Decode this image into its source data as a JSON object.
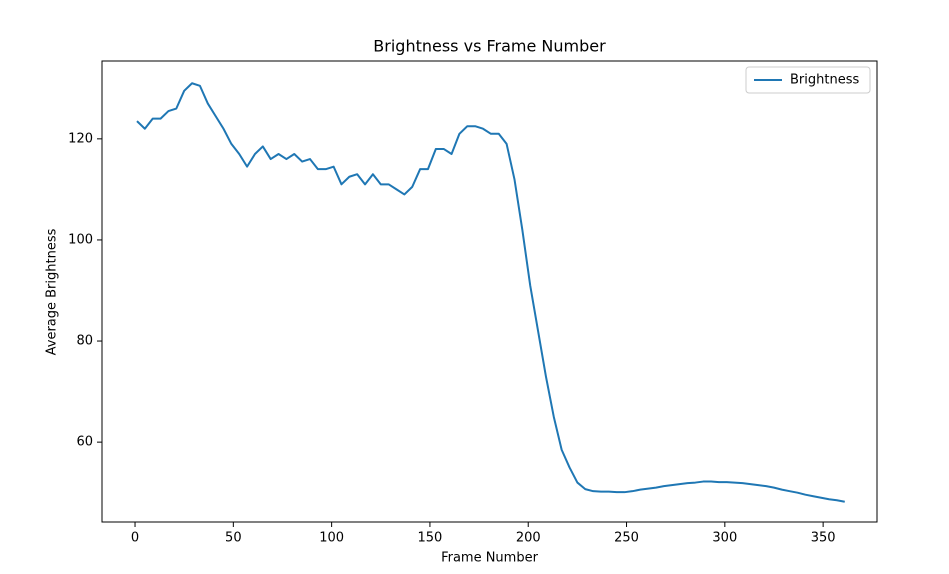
{
  "chart_data": {
    "type": "line",
    "title": "Brightness vs Frame Number",
    "x_label": "Frame Number",
    "y_label": "Average Brightness",
    "x": [
      1,
      5,
      9,
      13,
      17,
      21,
      25,
      29,
      33,
      37,
      41,
      45,
      49,
      53,
      57,
      61,
      65,
      69,
      73,
      77,
      81,
      85,
      89,
      93,
      97,
      101,
      105,
      109,
      113,
      117,
      121,
      125,
      129,
      133,
      137,
      141,
      145,
      149,
      153,
      157,
      161,
      165,
      169,
      173,
      177,
      181,
      185,
      189,
      193,
      197,
      201,
      205,
      209,
      213,
      217,
      221,
      225,
      229,
      233,
      237,
      241,
      245,
      249,
      253,
      257,
      261,
      265,
      269,
      273,
      277,
      281,
      285,
      289,
      293,
      297,
      301,
      305,
      309,
      313,
      317,
      321,
      325,
      329,
      333,
      337,
      341,
      345,
      349,
      353,
      357,
      361
    ],
    "series": [
      {
        "name": "Brightness",
        "color": "#1f77b4",
        "values": [
          123.5,
          122,
          124,
          124,
          125.5,
          126,
          129.5,
          131,
          130.5,
          127,
          124.5,
          122,
          119,
          117,
          114.5,
          117,
          118.5,
          116,
          117,
          116,
          117,
          115.5,
          116,
          114,
          114,
          114.5,
          111,
          112.5,
          113,
          111,
          113,
          111,
          111,
          110,
          109,
          110.5,
          114,
          114,
          118,
          118,
          117,
          121,
          122.5,
          122.5,
          122,
          121,
          121,
          119,
          112,
          102,
          91,
          82,
          73,
          65,
          58.5,
          55,
          52,
          50.7,
          50.3,
          50.2,
          50.2,
          50.1,
          50.1,
          50.3,
          50.6,
          50.8,
          51,
          51.3,
          51.5,
          51.7,
          51.9,
          52,
          52.2,
          52.2,
          52.1,
          52.1,
          52,
          51.9,
          51.7,
          51.5,
          51.3,
          51,
          50.6,
          50.3,
          50,
          49.6,
          49.3,
          49,
          48.7,
          48.5,
          48.2
        ]
      }
    ],
    "xlim": [
      -16.8,
      377.4
    ],
    "ylim": [
      44.2,
      135.4
    ],
    "xticks": [
      0,
      50,
      100,
      150,
      200,
      250,
      300,
      350
    ],
    "yticks": [
      60,
      80,
      100,
      120
    ],
    "legend": "upper right",
    "grid": false
  }
}
